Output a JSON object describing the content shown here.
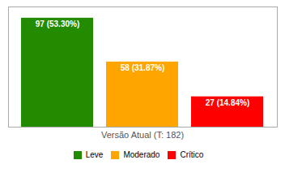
{
  "chart_data": {
    "type": "bar",
    "categories": [
      "Leve",
      "Moderado",
      "Crítico"
    ],
    "values": [
      97,
      58,
      27
    ],
    "value_labels": [
      "97 (53.30%)",
      "58 (31.87%)",
      "27 (14.84%)"
    ],
    "colors": [
      "#228B00",
      "#FFA500",
      "#FF0000"
    ],
    "xlabel": "Versão Atual (T: 182)",
    "ylim": [
      0,
      107
    ],
    "yticks": [],
    "grid": false,
    "data_labels": true,
    "tick_labels": false,
    "legend": "bottom"
  }
}
